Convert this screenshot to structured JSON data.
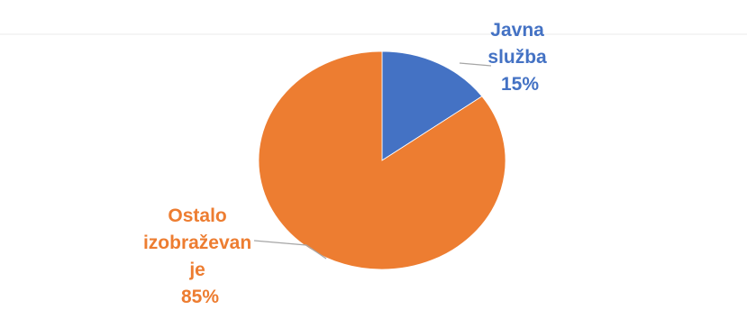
{
  "chart_data": {
    "type": "pie",
    "slices": [
      {
        "label_lines": [
          "Javna",
          "služba",
          "15%"
        ],
        "value": 15,
        "color": "#4472C4",
        "label_color": "#4472C4"
      },
      {
        "label_lines": [
          "Ostalo",
          "izobraževan",
          "je",
          "85%"
        ],
        "value": 85,
        "color": "#ED7D31",
        "label_color": "#ED7D31"
      }
    ],
    "start_angle_deg": 0,
    "direction": "clockwise",
    "legend": "none",
    "leader_line_color": "#A6A6A6",
    "page_tint": "#F2F2F2"
  }
}
